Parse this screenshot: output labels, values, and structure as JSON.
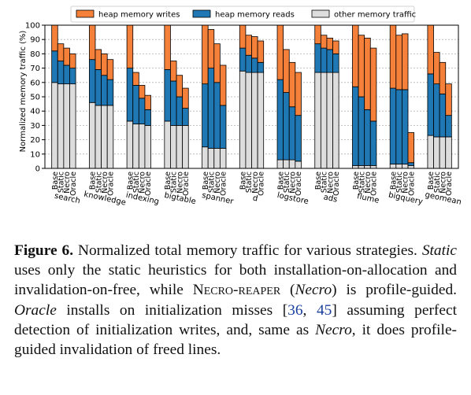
{
  "chart_data": {
    "type": "bar",
    "stacked": true,
    "ylabel": "Normalized memory traffic (%)",
    "ylim": [
      0,
      100
    ],
    "yticks": [
      0,
      10,
      20,
      30,
      40,
      50,
      60,
      70,
      80,
      90,
      100
    ],
    "grid": "horizontal",
    "legend_position": "top",
    "legend": [
      {
        "name": "heap memory writes",
        "color": "#f5803a"
      },
      {
        "name": "heap memory reads",
        "color": "#1f77b4"
      },
      {
        "name": "other memory traffic",
        "color": "#dddddd"
      }
    ],
    "strategies": [
      "Base",
      "Static",
      "Necro",
      "Oracle"
    ],
    "groups": [
      {
        "name": "search",
        "other": [
          60,
          59,
          59,
          59
        ],
        "reads_top": [
          82,
          75,
          72,
          70
        ],
        "total": [
          100,
          87,
          84,
          80
        ]
      },
      {
        "name": "knowledge",
        "other": [
          46,
          44,
          44,
          44
        ],
        "reads_top": [
          76,
          69,
          65,
          62
        ],
        "total": [
          100,
          83,
          80,
          76
        ]
      },
      {
        "name": "indexing",
        "other": [
          33,
          31,
          31,
          30
        ],
        "reads_top": [
          70,
          58,
          49,
          41
        ],
        "total": [
          100,
          67,
          58,
          51
        ]
      },
      {
        "name": "bigtable",
        "other": [
          33,
          30,
          30,
          30
        ],
        "reads_top": [
          69,
          61,
          50,
          42
        ],
        "total": [
          100,
          75,
          65,
          56
        ]
      },
      {
        "name": "spanner",
        "other": [
          15,
          14,
          14,
          14
        ],
        "reads_top": [
          59,
          70,
          60,
          44
        ],
        "total": [
          100,
          97,
          87,
          72
        ]
      },
      {
        "name": "d",
        "other": [
          68,
          67,
          67,
          67
        ],
        "reads_top": [
          84,
          79,
          77,
          74
        ],
        "total": [
          100,
          93,
          92,
          89
        ]
      },
      {
        "name": "logstore",
        "other": [
          6,
          6,
          6,
          5
        ],
        "reads_top": [
          62,
          53,
          43,
          37
        ],
        "total": [
          100,
          83,
          74,
          67
        ]
      },
      {
        "name": "ads",
        "other": [
          67,
          67,
          67,
          67
        ],
        "reads_top": [
          87,
          84,
          83,
          80
        ],
        "total": [
          100,
          93,
          91,
          89
        ]
      },
      {
        "name": "flume",
        "other": [
          2,
          2,
          2,
          2
        ],
        "reads_top": [
          57,
          50,
          41,
          33
        ],
        "total": [
          100,
          93,
          91,
          84
        ]
      },
      {
        "name": "bigquery",
        "other": [
          3,
          3,
          3,
          2
        ],
        "reads_top": [
          56,
          55,
          55,
          4
        ],
        "total": [
          100,
          93,
          94,
          25
        ]
      },
      {
        "name": "geomean",
        "other": [
          23,
          22,
          22,
          22
        ],
        "reads_top": [
          66,
          59,
          52,
          37
        ],
        "total": [
          100,
          81,
          74,
          59
        ]
      }
    ]
  },
  "caption": {
    "figure_label": "Figure 6.",
    "seg1": " Normalized total memory traffic for various strategies. ",
    "static": "Static",
    "seg2": " uses only the static heuristics for both installation-on-allocation and invalidation-on-free, while ",
    "necro_reaper": "Necro-reaper",
    "seg3": " (",
    "necro1": "Necro",
    "seg4": ") is profile-guided. ",
    "oracle": "Oracle",
    "seg5": " installs on initialization misses [",
    "ref1": "36",
    "seg6": ", ",
    "ref2": "45",
    "seg7": "] assuming perfect detection of initialization writes, and, same as ",
    "necro2": "Necro",
    "seg8": ", it does profile-guided invalidation of freed lines."
  }
}
